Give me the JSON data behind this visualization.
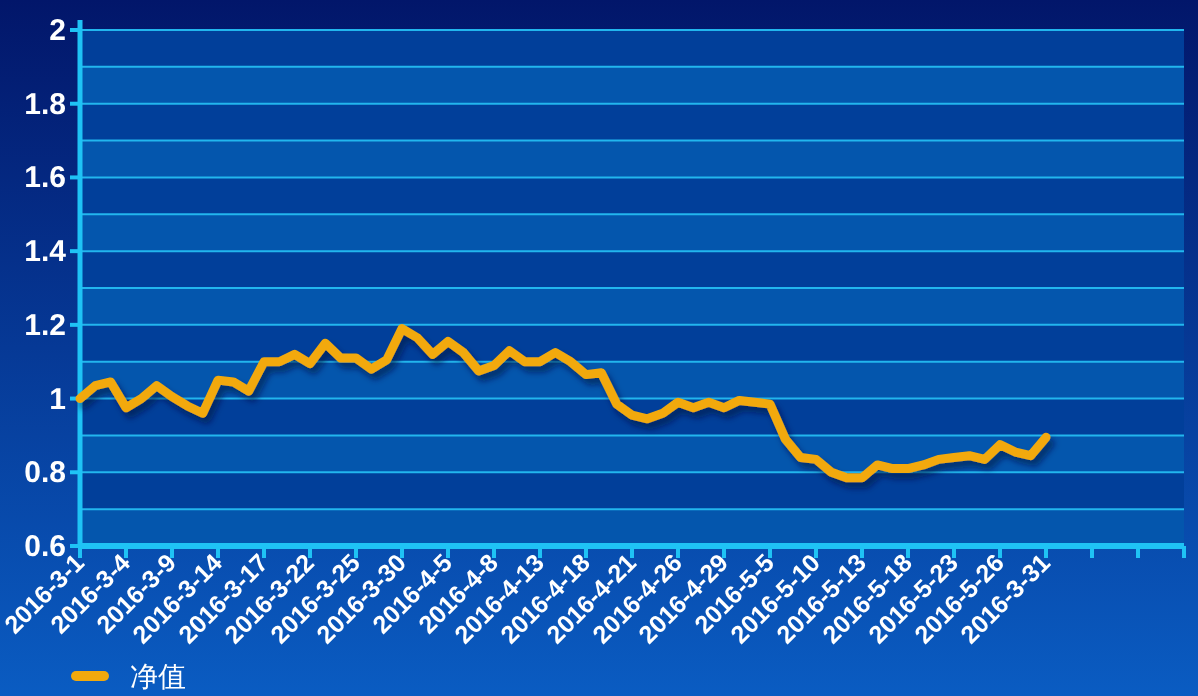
{
  "chart_data": {
    "type": "line",
    "categories": [
      "2016-3-1",
      null,
      null,
      "2016-3-4",
      null,
      null,
      "2016-3-9",
      null,
      null,
      "2016-3-14",
      null,
      null,
      "2016-3-17",
      null,
      null,
      "2016-3-22",
      null,
      null,
      "2016-3-25",
      null,
      null,
      "2016-3-30",
      null,
      null,
      "2016-4-5",
      null,
      null,
      "2016-4-8",
      null,
      null,
      "2016-4-13",
      null,
      null,
      "2016-4-18",
      null,
      null,
      "2016-4-21",
      null,
      null,
      "2016-4-26",
      null,
      null,
      "2016-4-29",
      null,
      null,
      "2016-5-5",
      null,
      null,
      "2016-5-10",
      null,
      null,
      "2016-5-13",
      null,
      null,
      "2016-5-18",
      null,
      null,
      "2016-5-23",
      null,
      null,
      "2016-5-26",
      null,
      null,
      "2016-3-31",
      null,
      null,
      null,
      null,
      null,
      null,
      null,
      null,
      null
    ],
    "series": [
      {
        "name": "净值",
        "color": "#f2a90c",
        "values": [
          1.0,
          1.035,
          1.045,
          0.975,
          1.0,
          1.035,
          1.005,
          0.98,
          0.96,
          1.05,
          1.045,
          1.02,
          1.1,
          1.1,
          1.12,
          1.095,
          1.15,
          1.11,
          1.11,
          1.08,
          1.105,
          1.19,
          1.165,
          1.12,
          1.155,
          1.125,
          1.075,
          1.09,
          1.13,
          1.1,
          1.1,
          1.125,
          1.1,
          1.065,
          1.07,
          0.985,
          0.955,
          0.945,
          0.96,
          0.99,
          0.975,
          0.99,
          0.975,
          0.995,
          0.99,
          0.985,
          0.89,
          0.84,
          0.835,
          0.8,
          0.785,
          0.785,
          0.82,
          0.81,
          0.81,
          0.82,
          0.835,
          0.84,
          0.845,
          0.835,
          0.875,
          0.855,
          0.845,
          0.895,
          null,
          null,
          null,
          null,
          null,
          null,
          null,
          null,
          null
        ]
      }
    ],
    "ylim": [
      0.6,
      2
    ],
    "yticks": [
      0.6,
      {
        "value": 0.7,
        "label": null
      },
      0.8,
      {
        "value": 0.9,
        "label": null
      },
      1,
      {
        "value": 1.1,
        "label": null
      },
      1.2,
      {
        "value": 1.3,
        "label": null
      },
      1.4,
      {
        "value": 1.5,
        "label": null
      },
      1.6,
      {
        "value": 1.7,
        "label": null
      },
      1.8,
      {
        "value": 1.9,
        "label": null
      },
      2
    ],
    "grid": "y",
    "legend": "bottom left",
    "marker": "none",
    "line_style": "solid"
  }
}
